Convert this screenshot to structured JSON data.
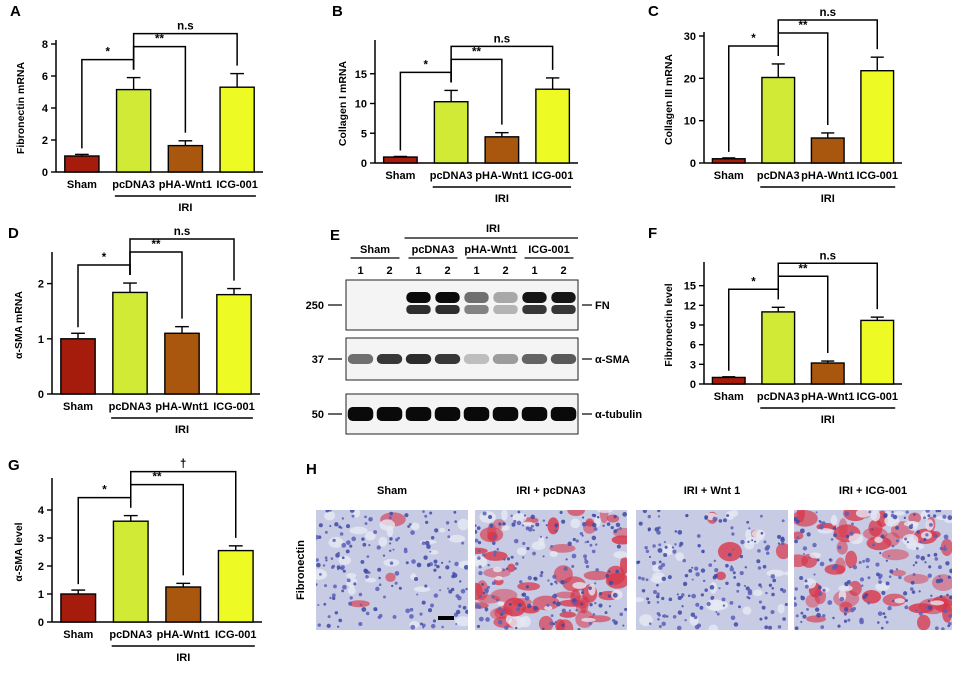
{
  "bar_colors": [
    "#a51c0c",
    "#d1ea35",
    "#a9560f",
    "#eefa24"
  ],
  "group_label": "IRI",
  "chart_data": [
    {
      "type": "bar",
      "panel_label": "A",
      "categories": [
        "Sham",
        "pcDNA3",
        "pHA-Wnt1",
        "ICG-001"
      ],
      "values": [
        1.0,
        5.15,
        1.65,
        5.3
      ],
      "errors": [
        0.1,
        0.75,
        0.3,
        0.85
      ],
      "ylabel": "Fibronectin mRNA",
      "ylim": [
        0,
        8
      ],
      "yticks": [
        0,
        2,
        4,
        6,
        8
      ],
      "comparisons": [
        {
          "from": 0,
          "to": 1,
          "label": "*"
        },
        {
          "from": 1,
          "to": 2,
          "label": "**"
        },
        {
          "from": 1,
          "to": 3,
          "label": "n.s"
        }
      ]
    },
    {
      "type": "bar",
      "panel_label": "B",
      "categories": [
        "Sham",
        "pcDNA3",
        "pHA-Wnt1",
        "ICG-001"
      ],
      "values": [
        1.0,
        10.3,
        4.4,
        12.4
      ],
      "errors": [
        0.1,
        1.9,
        0.7,
        1.9
      ],
      "ylabel": "Collagen I mRNA",
      "ylim": [
        0,
        20
      ],
      "yticks": [
        0,
        5,
        10,
        15
      ],
      "comparisons": [
        {
          "from": 0,
          "to": 1,
          "label": "*"
        },
        {
          "from": 1,
          "to": 2,
          "label": "**"
        },
        {
          "from": 1,
          "to": 3,
          "label": "n.s"
        }
      ]
    },
    {
      "type": "bar",
      "panel_label": "C",
      "categories": [
        "Sham",
        "pcDNA3",
        "pHA-Wnt1",
        "ICG-001"
      ],
      "values": [
        1.0,
        20.2,
        5.9,
        21.8
      ],
      "errors": [
        0.2,
        3.2,
        1.2,
        3.2
      ],
      "ylabel": "Collagen III mRNA",
      "ylim": [
        0,
        30
      ],
      "yticks": [
        0,
        10,
        20,
        30
      ],
      "comparisons": [
        {
          "from": 0,
          "to": 1,
          "label": "*"
        },
        {
          "from": 1,
          "to": 2,
          "label": "**"
        },
        {
          "from": 1,
          "to": 3,
          "label": "n.s"
        }
      ]
    },
    {
      "type": "bar",
      "panel_label": "D",
      "categories": [
        "Sham",
        "pcDNA3",
        "pHA-Wnt1",
        "ICG-001"
      ],
      "values": [
        1.0,
        1.84,
        1.1,
        1.8
      ],
      "errors": [
        0.1,
        0.17,
        0.12,
        0.11
      ],
      "ylabel": "α-SMA mRNA",
      "ylim": [
        0,
        2.5
      ],
      "yticks": [
        0,
        1,
        2
      ],
      "comparisons": [
        {
          "from": 0,
          "to": 1,
          "label": "*"
        },
        {
          "from": 1,
          "to": 2,
          "label": "**"
        },
        {
          "from": 1,
          "to": 3,
          "label": "n.s"
        }
      ]
    },
    {
      "type": "bar",
      "panel_label": "F",
      "categories": [
        "Sham",
        "pcDNA3",
        "pHA-Wnt1",
        "ICG-001"
      ],
      "values": [
        1.0,
        11.0,
        3.2,
        9.7
      ],
      "errors": [
        0.1,
        0.7,
        0.3,
        0.5
      ],
      "ylabel": "Fibronectin level",
      "ylim": [
        0,
        18
      ],
      "yticks": [
        0,
        3,
        6,
        9,
        12,
        15
      ],
      "comparisons": [
        {
          "from": 0,
          "to": 1,
          "label": "*"
        },
        {
          "from": 1,
          "to": 2,
          "label": "**"
        },
        {
          "from": 1,
          "to": 3,
          "label": "n.s"
        }
      ]
    },
    {
      "type": "bar",
      "panel_label": "G",
      "categories": [
        "Sham",
        "pcDNA3",
        "pHA-Wnt1",
        "ICG-001"
      ],
      "values": [
        1.0,
        3.6,
        1.25,
        2.55
      ],
      "errors": [
        0.14,
        0.2,
        0.13,
        0.17
      ],
      "ylabel": "α-SMA level",
      "ylim": [
        0,
        5
      ],
      "yticks": [
        0,
        1,
        2,
        3,
        4
      ],
      "comparisons": [
        {
          "from": 0,
          "to": 1,
          "label": "*"
        },
        {
          "from": 1,
          "to": 2,
          "label": "**"
        },
        {
          "from": 1,
          "to": 3,
          "label": "†"
        }
      ]
    }
  ],
  "blot": {
    "panel_label": "E",
    "top_label": "IRI",
    "groups": [
      "Sham",
      "pcDNA3",
      "pHA-Wnt1",
      "ICG-001"
    ],
    "lanes": [
      "1",
      "2",
      "1",
      "2",
      "1",
      "2",
      "1",
      "2"
    ],
    "strips": [
      {
        "name": "FN",
        "marker": "250",
        "intensities": [
          0,
          0,
          1.0,
          1.0,
          0.55,
          0.3,
          0.95,
          0.95
        ]
      },
      {
        "name": "α-SMA",
        "marker": "37",
        "intensities": [
          0.55,
          0.8,
          0.85,
          0.8,
          0.2,
          0.35,
          0.6,
          0.65
        ]
      },
      {
        "name": "α-tubulin",
        "marker": "50",
        "intensities": [
          1,
          1,
          1,
          1,
          1,
          1,
          1,
          1
        ]
      }
    ]
  },
  "histology": {
    "panel_label": "H",
    "row_label": "Fibronectin",
    "columns": [
      {
        "title": "Sham",
        "stain_level": 0.05
      },
      {
        "title": "IRI + pcDNA3",
        "stain_level": 0.9
      },
      {
        "title": "IRI + Wnt 1",
        "stain_level": 0.08
      },
      {
        "title": "IRI + ICG-001",
        "stain_level": 0.75
      }
    ]
  }
}
